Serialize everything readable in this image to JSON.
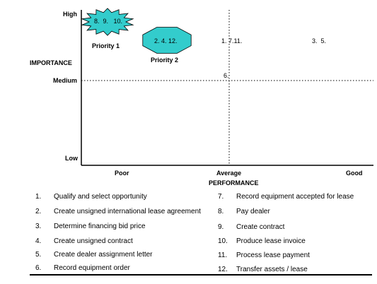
{
  "chart_data": {
    "type": "scatter",
    "xlabel": "PERFORMANCE",
    "ylabel": "IMPORTANCE",
    "x_ticks": [
      "Poor",
      "Average",
      "Good"
    ],
    "y_ticks": [
      "High",
      "Medium",
      "Low"
    ],
    "points": [
      {
        "label": "1. 7.11.",
        "x": 0.5,
        "y": 0.86
      },
      {
        "label": "3.  5.",
        "x": 0.92,
        "y": 0.86
      },
      {
        "label": "6.",
        "x": 0.5,
        "y": 0.6
      }
    ],
    "clusters": [
      {
        "label": "8.  9.   10.",
        "name": "Priority 1",
        "shape": "star",
        "color": "#33cccc",
        "x": 0.1,
        "y": 0.94
      },
      {
        "label": "2. 4. 12.",
        "name": "Priority 2",
        "shape": "octagon",
        "color": "#33cccc",
        "x": 0.3,
        "y": 0.86
      }
    ],
    "reference_lines": {
      "x": "Average",
      "y": "Medium"
    }
  },
  "legend": [
    {
      "num": "1.",
      "text": "Qualify and select opportunity"
    },
    {
      "num": "2.",
      "text": "Create unsigned international lease agreement"
    },
    {
      "num": "3.",
      "text": "Determine financing bid price"
    },
    {
      "num": "4.",
      "text": "Create unsigned contract"
    },
    {
      "num": "5.",
      "text": "Create dealer assignment letter"
    },
    {
      "num": "6.",
      "text": "Record equipment order"
    },
    {
      "num": "7.",
      "text": "Record equipment accepted for lease"
    },
    {
      "num": "8.",
      "text": "Pay dealer"
    },
    {
      "num": "9.",
      "text": "Create contract"
    },
    {
      "num": "10.",
      "text": "Produce lease invoice"
    },
    {
      "num": "11.",
      "text": "Process lease payment"
    },
    {
      "num": "12.",
      "text": "Transfer assets / lease"
    }
  ]
}
